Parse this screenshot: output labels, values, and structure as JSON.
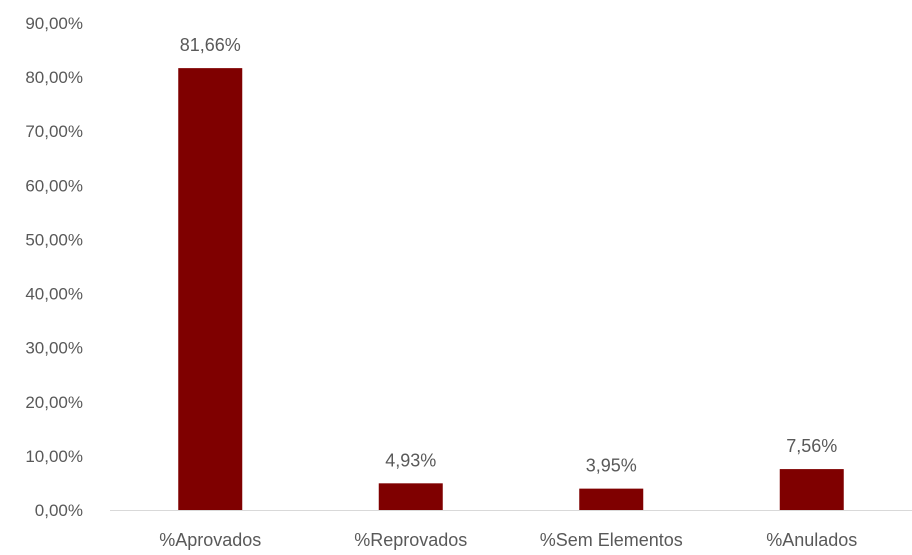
{
  "chart_data": {
    "type": "bar",
    "categories": [
      "%Aprovados",
      "%Reprovados",
      "%Sem Elementos",
      "%Anulados"
    ],
    "values": [
      81.66,
      4.93,
      3.95,
      7.56
    ],
    "data_labels": [
      "81,66%",
      "4,93%",
      "3,95%",
      "7,56%"
    ],
    "ylim": [
      0,
      90
    ],
    "yticks": [
      0,
      10,
      20,
      30,
      40,
      50,
      60,
      70,
      80,
      90
    ],
    "ytick_labels": [
      "0,00%",
      "10,00%",
      "20,00%",
      "30,00%",
      "40,00%",
      "50,00%",
      "60,00%",
      "70,00%",
      "80,00%",
      "90,00%"
    ],
    "grid": false,
    "legend": "none",
    "title": "",
    "xlabel": "",
    "ylabel": "",
    "colors": {
      "bar": "#7f0000",
      "axis": "#d9d9d9",
      "text": "#595959"
    }
  }
}
